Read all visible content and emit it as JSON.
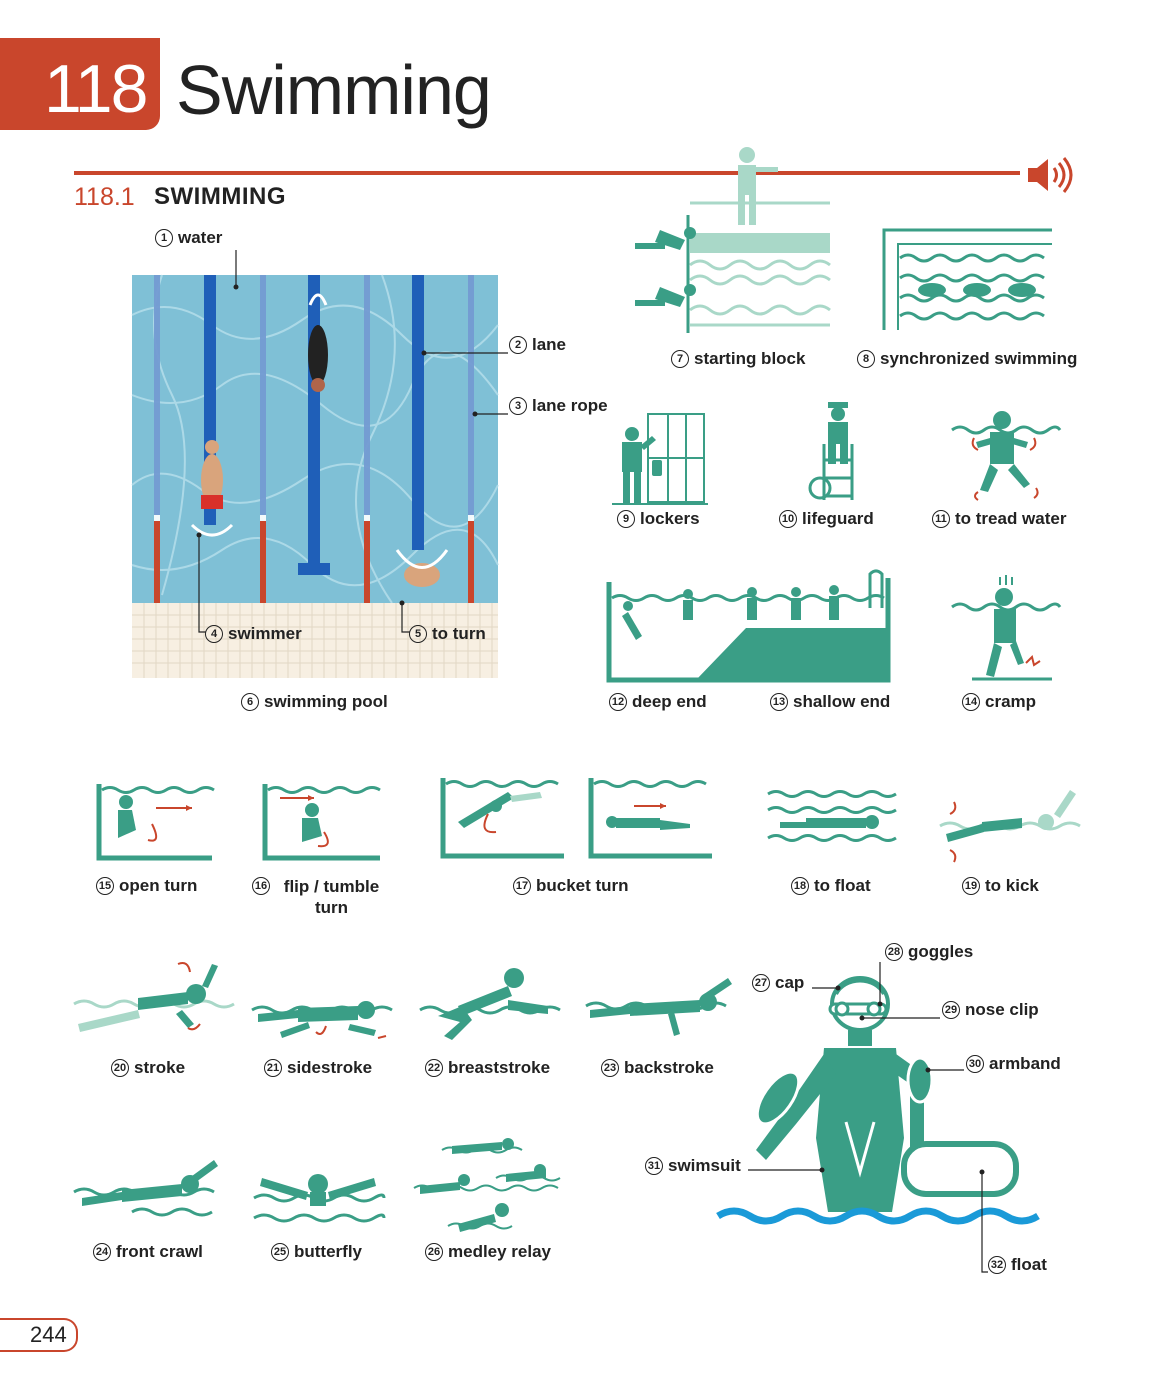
{
  "chapter": {
    "number": "118",
    "title": "Swimming"
  },
  "section": {
    "number": "118.1",
    "title": "SWIMMING"
  },
  "page_number": "244",
  "colors": {
    "accent": "#c9462c",
    "teal": "#3a9e86",
    "teal_light": "#a9d8c8",
    "pool": "#7fc0d6",
    "lane": "#1f5fb8",
    "wave": "#1a9ad8"
  },
  "icons": {
    "audio": "speaker-icon"
  },
  "items": [
    {
      "n": "1",
      "text": "water"
    },
    {
      "n": "2",
      "text": "lane"
    },
    {
      "n": "3",
      "text": "lane rope"
    },
    {
      "n": "4",
      "text": "swimmer"
    },
    {
      "n": "5",
      "text": "to turn"
    },
    {
      "n": "6",
      "text": "swimming pool"
    },
    {
      "n": "7",
      "text": "starting block"
    },
    {
      "n": "8",
      "text": "synchronized swimming"
    },
    {
      "n": "9",
      "text": "lockers"
    },
    {
      "n": "10",
      "text": "lifeguard"
    },
    {
      "n": "11",
      "text": "to tread water"
    },
    {
      "n": "12",
      "text": "deep end"
    },
    {
      "n": "13",
      "text": "shallow end"
    },
    {
      "n": "14",
      "text": "cramp"
    },
    {
      "n": "15",
      "text": "open turn"
    },
    {
      "n": "16",
      "text": "flip / tumble turn"
    },
    {
      "n": "17",
      "text": "bucket turn"
    },
    {
      "n": "18",
      "text": "to float"
    },
    {
      "n": "19",
      "text": "to kick"
    },
    {
      "n": "20",
      "text": "stroke"
    },
    {
      "n": "21",
      "text": "sidestroke"
    },
    {
      "n": "22",
      "text": "breaststroke"
    },
    {
      "n": "23",
      "text": "backstroke"
    },
    {
      "n": "24",
      "text": "front crawl"
    },
    {
      "n": "25",
      "text": "butterfly"
    },
    {
      "n": "26",
      "text": "medley relay"
    },
    {
      "n": "27",
      "text": "cap"
    },
    {
      "n": "28",
      "text": "goggles"
    },
    {
      "n": "29",
      "text": "nose clip"
    },
    {
      "n": "30",
      "text": "armband"
    },
    {
      "n": "31",
      "text": "swimsuit"
    },
    {
      "n": "32",
      "text": "float"
    }
  ]
}
